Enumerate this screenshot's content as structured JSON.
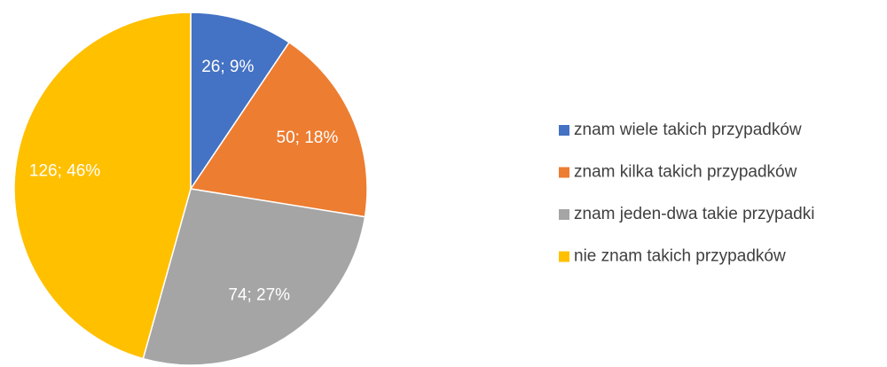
{
  "chart_data": {
    "type": "pie",
    "categories": [
      "znam wiele takich przypadków",
      "znam kilka takich przypadków",
      "znam jeden-dwa takie przypadki",
      "nie znam takich przypadków"
    ],
    "values": [
      26,
      50,
      74,
      126
    ],
    "value_labels": [
      "26; 9%",
      "50; 18%",
      "74; 27%",
      "126; 46%"
    ],
    "colors": [
      "#4472c4",
      "#ed7d31",
      "#a5a5a5",
      "#ffc000"
    ],
    "legend": "right"
  }
}
